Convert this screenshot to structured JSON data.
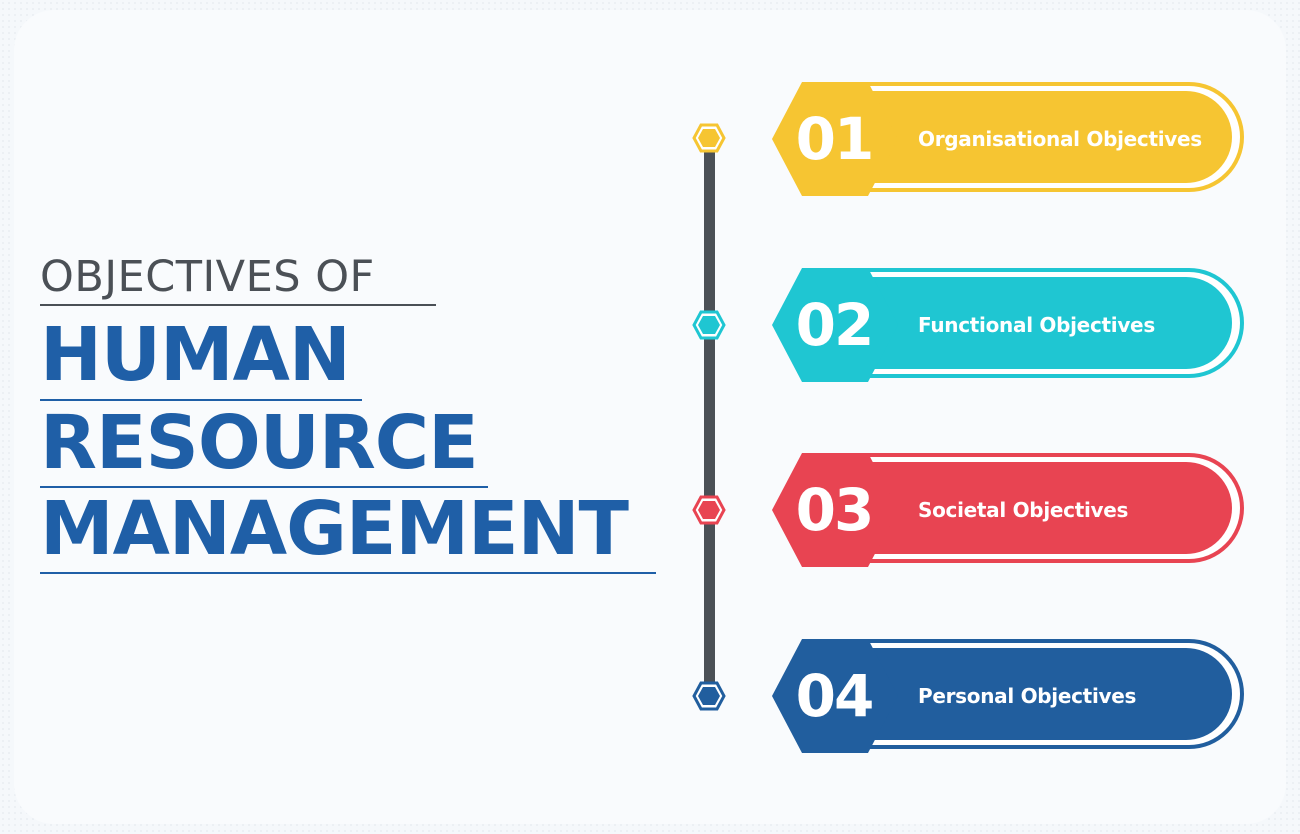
{
  "title": {
    "line1": "OBJECTIVES OF",
    "line2": "HUMAN",
    "line3": "RESOURCE",
    "line4": "MANAGEMENT"
  },
  "items": [
    {
      "number": "01",
      "label": "Organisational Objectives",
      "color": "#f6c532"
    },
    {
      "number": "02",
      "label": "Functional Objectives",
      "color": "#1fc6d2"
    },
    {
      "number": "03",
      "label": "Societal Objectives",
      "color": "#e84452"
    },
    {
      "number": "04",
      "label": "Personal Objectives",
      "color": "#215e9e"
    }
  ],
  "colors": {
    "title_dark": "#4b5056",
    "title_blue": "#1f5fa7",
    "timeline": "#4b5056",
    "background": "#f5f8fb"
  }
}
